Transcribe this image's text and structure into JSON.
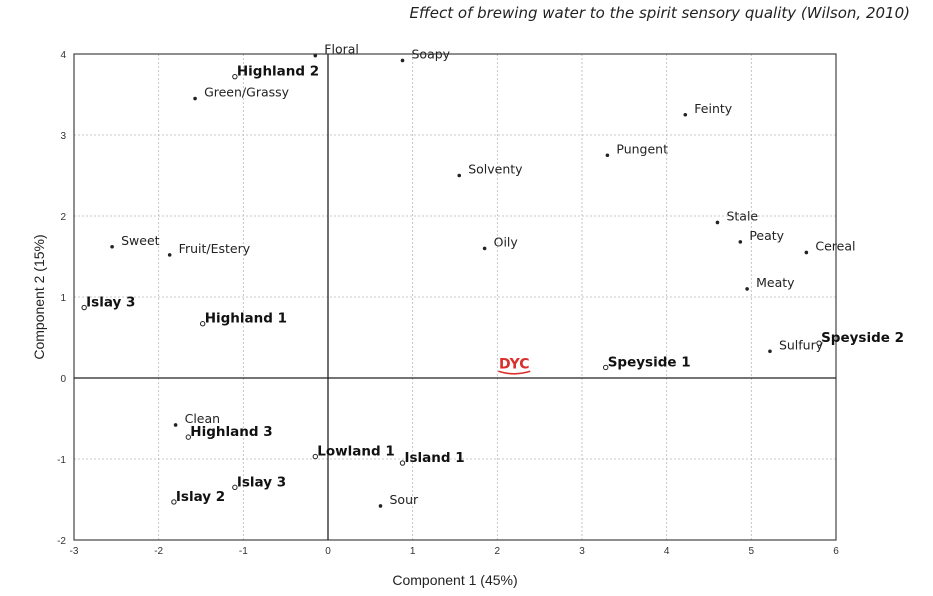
{
  "title": "Effect of  brewing water to the spirit sensory quality (Wilson, 2010)",
  "watermark": "DYC",
  "chart_data": {
    "type": "scatter",
    "title": "Effect of  brewing water to the spirit sensory quality (Wilson, 2010)",
    "xlabel": "Component 1 (45%)",
    "ylabel": "Component 2 (15%)",
    "xlim": [
      -3,
      6
    ],
    "ylim": [
      -2,
      4
    ],
    "xticks": [
      -3,
      -2,
      -1,
      0,
      1,
      2,
      3,
      4,
      5,
      6
    ],
    "yticks": [
      -2,
      -1,
      0,
      1,
      2,
      3,
      4
    ],
    "grid": true,
    "legend": "none",
    "sensory_attributes": [
      {
        "label": "Floral",
        "x": -0.15,
        "y": 3.98
      },
      {
        "label": "Soapy",
        "x": 0.88,
        "y": 3.92
      },
      {
        "label": "Green/Grassy",
        "x": -1.57,
        "y": 3.45
      },
      {
        "label": "Feinty",
        "x": 4.22,
        "y": 3.25
      },
      {
        "label": "Pungent",
        "x": 3.3,
        "y": 2.75
      },
      {
        "label": "Solventy",
        "x": 1.55,
        "y": 2.5
      },
      {
        "label": "Stale",
        "x": 4.6,
        "y": 1.92
      },
      {
        "label": "Peaty",
        "x": 4.87,
        "y": 1.68
      },
      {
        "label": "Oily",
        "x": 1.85,
        "y": 1.6
      },
      {
        "label": "Sweet",
        "x": -2.55,
        "y": 1.62
      },
      {
        "label": "Fruit/Estery",
        "x": -1.87,
        "y": 1.52
      },
      {
        "label": "Cereal",
        "x": 5.65,
        "y": 1.55
      },
      {
        "label": "Meaty",
        "x": 4.95,
        "y": 1.1
      },
      {
        "label": "Sulfury",
        "x": 5.22,
        "y": 0.33
      },
      {
        "label": "Clean",
        "x": -1.8,
        "y": -0.58
      },
      {
        "label": "Sour",
        "x": 0.62,
        "y": -1.58
      }
    ],
    "samples": [
      {
        "label": "Highland 2",
        "x": -1.1,
        "y": 3.72
      },
      {
        "label": "Islay 3",
        "x": -2.88,
        "y": 0.87
      },
      {
        "label": "Highland 1",
        "x": -1.48,
        "y": 0.67
      },
      {
        "label": "Speyside 2",
        "x": 5.8,
        "y": 0.43
      },
      {
        "label": "Speyside 1",
        "x": 3.28,
        "y": 0.13
      },
      {
        "label": "Highland 3",
        "x": -1.65,
        "y": -0.73
      },
      {
        "label": "Lowland 1",
        "x": -0.15,
        "y": -0.97
      },
      {
        "label": "Island 1",
        "x": 0.88,
        "y": -1.05
      },
      {
        "label": "Islay 3",
        "x": -1.1,
        "y": -1.35
      },
      {
        "label": "Islay 2",
        "x": -1.82,
        "y": -1.53
      }
    ]
  }
}
